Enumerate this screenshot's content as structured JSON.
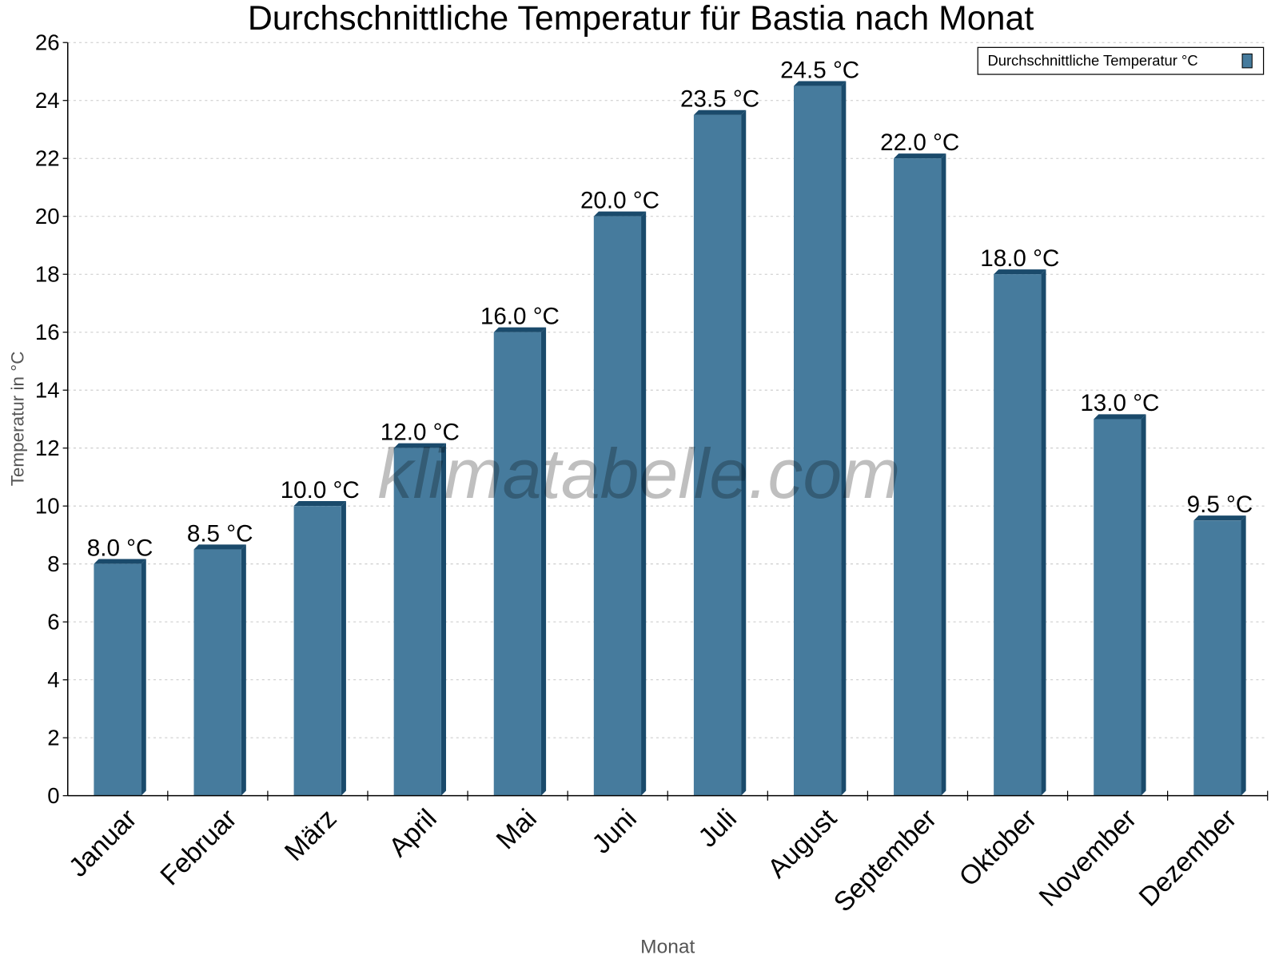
{
  "chart_data": {
    "type": "bar",
    "title": "Durchschnittliche Temperatur für Bastia nach Monat",
    "xlabel": "Monat",
    "ylabel": "Temperatur in °C",
    "categories": [
      "Januar",
      "Februar",
      "März",
      "April",
      "Mai",
      "Juni",
      "Juli",
      "August",
      "September",
      "Oktober",
      "November",
      "Dezember"
    ],
    "series": [
      {
        "name": "Durchschnittliche Temperatur °C",
        "values": [
          8.0,
          8.5,
          10.0,
          12.0,
          16.0,
          20.0,
          23.5,
          24.5,
          22.0,
          18.0,
          13.0,
          9.5
        ],
        "color": "#467b9d",
        "edge_color": "#1a4a6b"
      }
    ],
    "data_labels": [
      "8.0 °C",
      "8.5 °C",
      "10.0 °C",
      "12.0 °C",
      "16.0 °C",
      "20.0 °C",
      "23.5 °C",
      "24.5 °C",
      "22.0 °C",
      "18.0 °C",
      "13.0 °C",
      "9.5 °C"
    ],
    "ylim": [
      0,
      26
    ],
    "yticks": [
      0,
      2,
      4,
      6,
      8,
      10,
      12,
      14,
      16,
      18,
      20,
      22,
      24,
      26
    ],
    "grid": true,
    "legend_position": "top-right",
    "watermark": "klimatabelle.com"
  }
}
